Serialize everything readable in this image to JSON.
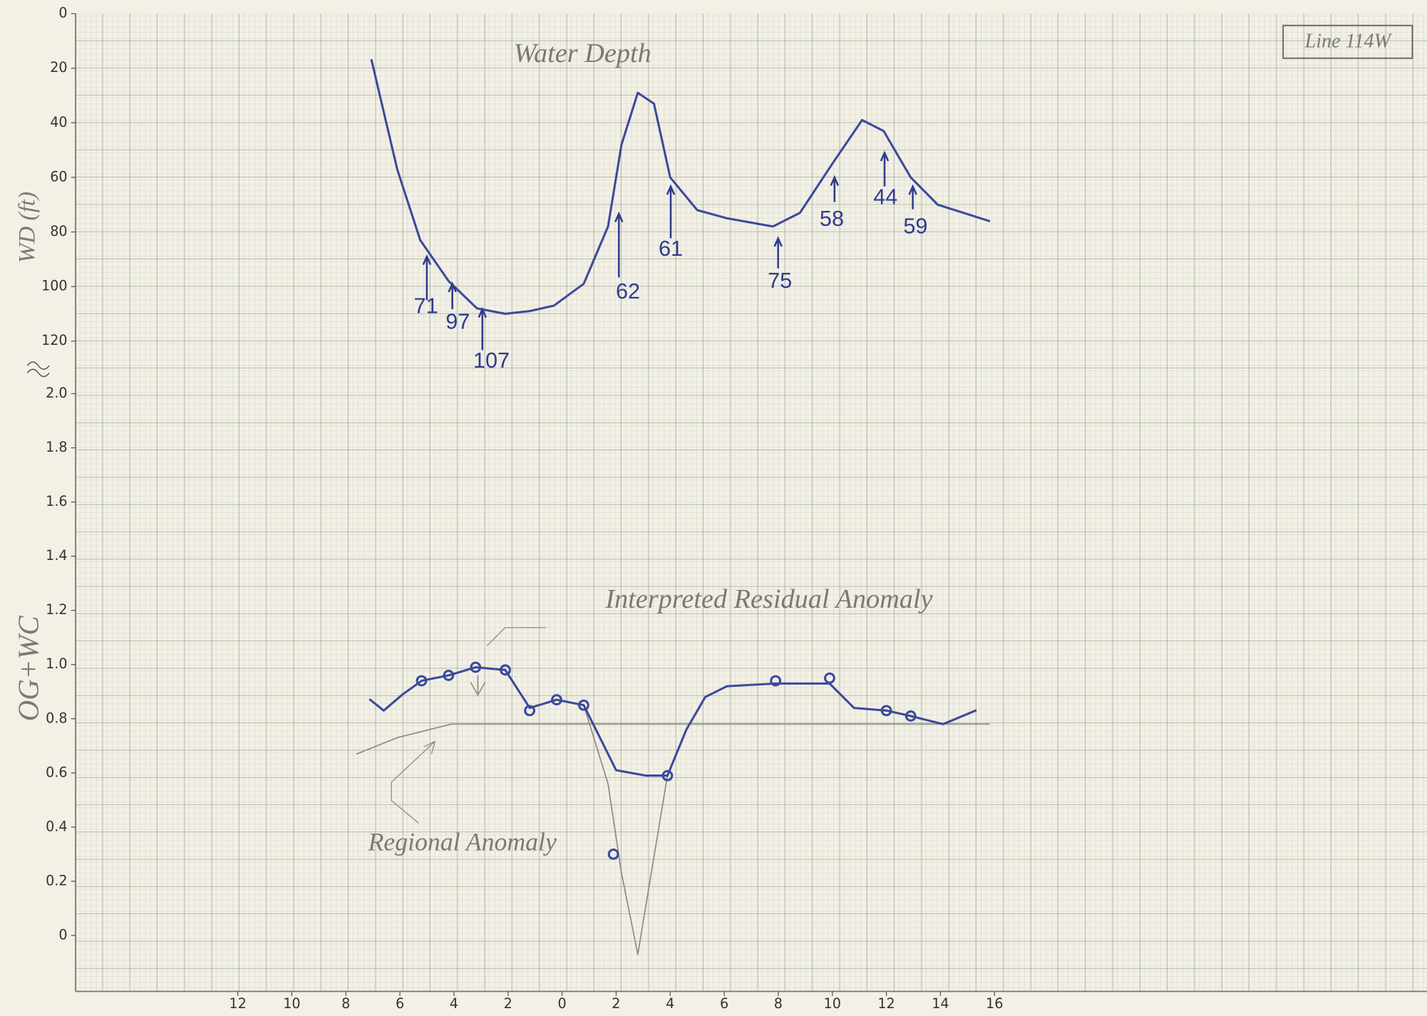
{
  "chart_data": [
    {
      "type": "line",
      "title": "Water Depth",
      "y_label": "WD (ft)",
      "box_label": "Line 114W",
      "xlim": [
        -18,
        32
      ],
      "ylim": [
        0,
        128
      ],
      "invert_y": true,
      "yticks": [
        0,
        20,
        40,
        60,
        80,
        100,
        120
      ],
      "series": [
        {
          "color": "#3b4a9c",
          "style": "line",
          "x": [
            -7.05,
            -6.1,
            -5.25,
            -4.2,
            -3.15,
            -2.1,
            -1.2,
            -0.3,
            0.8,
            1.7,
            2.2,
            2.8,
            3.4,
            4.0,
            5.0,
            6.1,
            7.8,
            8.8,
            10.0,
            11.1,
            11.9,
            12.9,
            13.9,
            15.8
          ],
          "values": [
            17,
            57,
            83,
            98,
            108,
            110,
            109,
            107,
            99,
            78,
            48,
            29,
            33,
            60,
            72,
            75,
            78,
            73,
            55,
            39,
            43,
            60,
            70,
            76
          ]
        }
      ],
      "annotations": [
        "71",
        "97",
        "107",
        "62",
        "61",
        "75",
        "58",
        "44",
        "59"
      ]
    },
    {
      "type": "line",
      "y_label": "OG+WC",
      "xlim": [
        -18,
        32
      ],
      "ylim": [
        -0.2,
        2.1
      ],
      "yticks": [
        {
          "value": 2,
          "label": "2.0"
        },
        1.8,
        1.6,
        1.4,
        1.2,
        {
          "value": 1,
          "label": "1.0"
        },
        0.8,
        0.6,
        0.4,
        0.2,
        0
      ],
      "xticks": [
        {
          "value": -12,
          "label": "12"
        },
        {
          "value": -10,
          "label": "10"
        },
        {
          "value": -8,
          "label": "8"
        },
        {
          "value": -6,
          "label": "6"
        },
        {
          "value": -4,
          "label": "4"
        },
        {
          "value": -2,
          "label": "2"
        },
        0,
        2,
        4,
        6,
        8,
        10,
        12,
        14,
        16
      ],
      "series": [
        {
          "color": "#8a8a80",
          "style": "line",
          "x": [
            -7.6,
            -6.1,
            -4.1,
            1.0,
            4.7,
            15.8
          ],
          "values": [
            0.67,
            0.73,
            0.78,
            0.78,
            0.78,
            0.78
          ]
        },
        {
          "color": "#8a8a80",
          "style": "line",
          "x": [
            0.8,
            1.7,
            2.2,
            2.8,
            3.3,
            3.9
          ],
          "values": [
            0.85,
            0.56,
            0.23,
            -0.07,
            0.23,
            0.59
          ]
        },
        {
          "color": "#3b4a9c",
          "style": "line",
          "x": [
            -7.1,
            -6.6,
            -5.9,
            -5.2,
            -4.2,
            -3.2,
            -2.1,
            -1.2,
            -0.2,
            0.8,
            1.4,
            2.0,
            3.1,
            3.9,
            4.6,
            5.3,
            6.1,
            7.9,
            9.9,
            10.8,
            12.0,
            12.9,
            14.1,
            15.3
          ],
          "values": [
            0.87,
            0.83,
            0.89,
            0.94,
            0.96,
            0.99,
            0.98,
            0.84,
            0.87,
            0.85,
            0.73,
            0.61,
            0.59,
            0.59,
            0.76,
            0.88,
            0.92,
            0.93,
            0.93,
            0.84,
            0.83,
            0.81,
            0.78,
            0.83
          ]
        },
        {
          "color": "#3b4a9c",
          "style": "points",
          "x": [
            -5.2,
            -4.2,
            -3.2,
            -2.1,
            -1.2,
            -0.2,
            0.8,
            1.9,
            3.9,
            7.9,
            9.9,
            12.0,
            12.9
          ],
          "values": [
            0.94,
            0.96,
            0.99,
            0.98,
            0.83,
            0.87,
            0.85,
            0.3,
            0.59,
            0.94,
            0.95,
            0.83,
            0.81
          ]
        }
      ],
      "annotations": [
        "Interpreted Residual Anomaly",
        "Regional Anomaly"
      ]
    }
  ]
}
